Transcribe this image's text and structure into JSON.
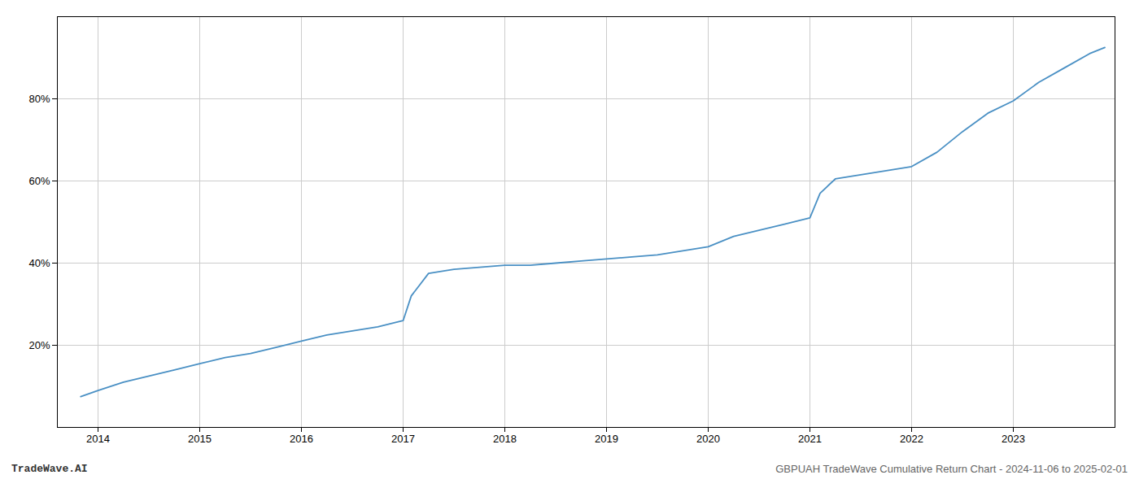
{
  "chart_data": {
    "type": "line",
    "title": "GBPUAH TradeWave Cumulative Return Chart - 2024-11-06 to 2025-02-01",
    "annotations": [
      "TradeWave.AI"
    ],
    "color": "#4a90c4",
    "x": [
      2013.83,
      2014.0,
      2014.25,
      2014.5,
      2014.75,
      2015.0,
      2015.25,
      2015.5,
      2015.75,
      2016.0,
      2016.25,
      2016.5,
      2016.75,
      2017.0,
      2017.08,
      2017.25,
      2017.5,
      2017.75,
      2018.0,
      2018.25,
      2018.5,
      2018.75,
      2019.0,
      2019.25,
      2019.5,
      2019.75,
      2020.0,
      2020.25,
      2020.5,
      2020.75,
      2021.0,
      2021.1,
      2021.25,
      2021.5,
      2021.75,
      2022.0,
      2022.25,
      2022.5,
      2022.75,
      2023.0,
      2023.25,
      2023.5,
      2023.75,
      2023.9
    ],
    "values": [
      7.5,
      9.0,
      11.0,
      12.5,
      14.0,
      15.5,
      17.0,
      18.0,
      19.5,
      21.0,
      22.5,
      23.5,
      24.5,
      26.0,
      32.0,
      37.5,
      38.5,
      39.0,
      39.5,
      39.5,
      40.0,
      40.5,
      41.0,
      41.5,
      42.0,
      43.0,
      44.0,
      46.5,
      48.0,
      49.5,
      51.0,
      57.0,
      60.5,
      61.5,
      62.5,
      63.5,
      67.0,
      72.0,
      76.5,
      79.5,
      84.0,
      87.5,
      91.0,
      92.5
    ],
    "xlim": [
      2013.6,
      2024.0
    ],
    "xticks": [
      2014,
      2015,
      2016,
      2017,
      2018,
      2019,
      2020,
      2021,
      2022,
      2023
    ],
    "ylim": [
      0,
      100
    ],
    "yticks": [
      {
        "value": 20,
        "label": "20%"
      },
      {
        "value": 40,
        "label": "40%"
      },
      {
        "value": 60,
        "label": "60%"
      },
      {
        "value": 80,
        "label": "80%"
      }
    ],
    "grid": true
  }
}
